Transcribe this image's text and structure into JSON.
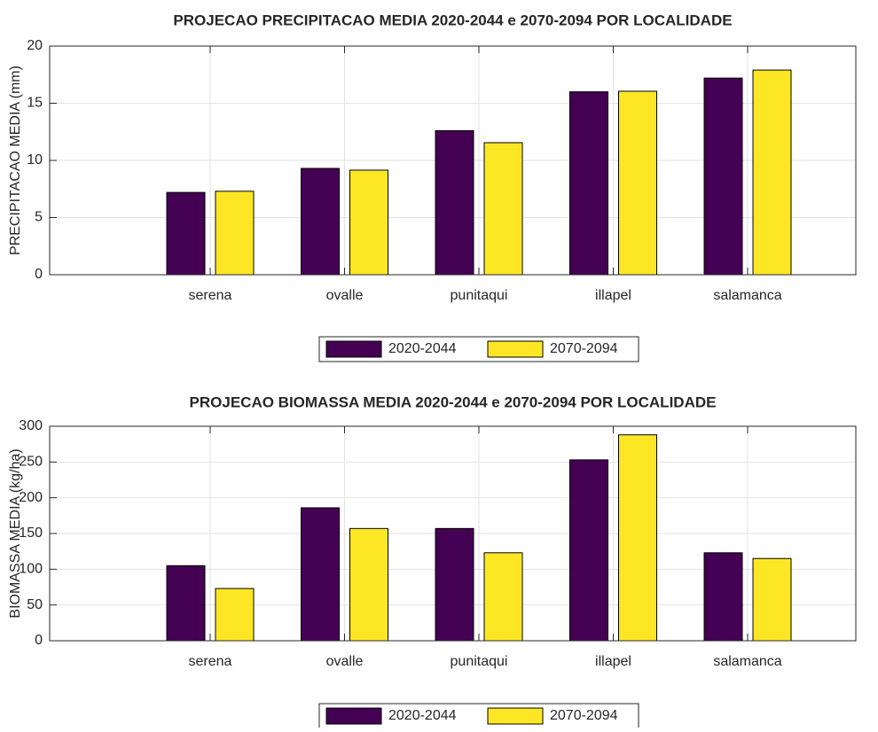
{
  "chart_data": [
    {
      "type": "bar",
      "title": "PROJECAO PRECIPITACAO MEDIA 2020-2044 e 2070-2094 POR LOCALIDADE",
      "ylabel": "PRECIPITACAO MEDIA (mm)",
      "categories": [
        "serena",
        "ovalle",
        "punitaqui",
        "illapel",
        "salamanca"
      ],
      "series": [
        {
          "name": "2020-2044",
          "color": "#440154",
          "values": [
            7.2,
            9.3,
            12.6,
            16.0,
            17.2
          ]
        },
        {
          "name": "2070-2094",
          "color": "#fde725",
          "values": [
            7.3,
            9.15,
            11.55,
            16.05,
            17.9
          ]
        }
      ],
      "ylim": [
        0,
        20
      ],
      "yticks": [
        0,
        5,
        10,
        15,
        20
      ],
      "grid": true,
      "legend": "bottom"
    },
    {
      "type": "bar",
      "title": "PROJECAO BIOMASSA MEDIA 2020-2044 e 2070-2094 POR LOCALIDADE",
      "ylabel": "BIOMASSA MEDIA (kg/ha)",
      "categories": [
        "serena",
        "ovalle",
        "punitaqui",
        "illapel",
        "salamanca"
      ],
      "series": [
        {
          "name": "2020-2044",
          "color": "#440154",
          "values": [
            105,
            186,
            157,
            253,
            123
          ]
        },
        {
          "name": "2070-2094",
          "color": "#fde725",
          "values": [
            73,
            157,
            123,
            288,
            115
          ]
        }
      ],
      "ylim": [
        0,
        300
      ],
      "yticks": [
        0,
        50,
        100,
        150,
        200,
        250,
        300
      ],
      "grid": true,
      "legend": "bottom"
    }
  ]
}
